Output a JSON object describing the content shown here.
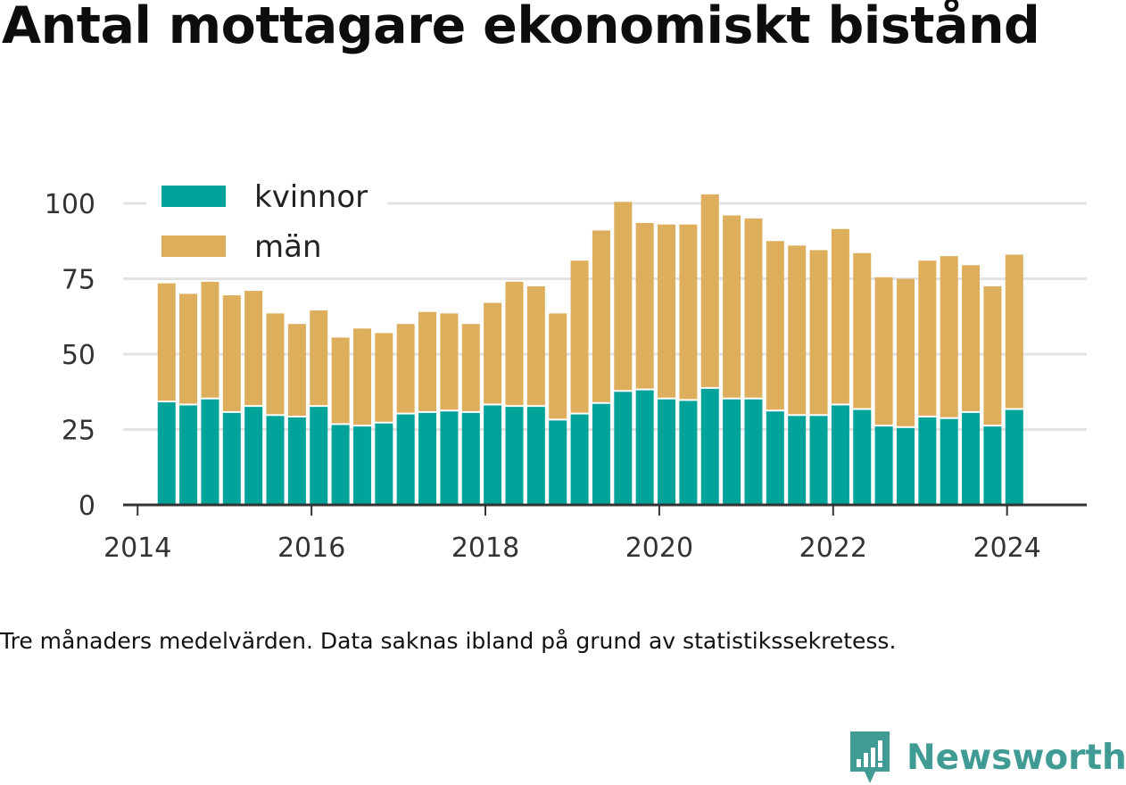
{
  "title": "Antal mottagare ekonomiskt bistånd",
  "note": "Tre månaders medelvärden. Data saknas ibland på grund av statistikssekretess.",
  "brand": {
    "name": "Newsworthy",
    "logo_icon": "newsworthy-bar-chart-logo-icon"
  },
  "colors": {
    "kvinnor": "#00a39a",
    "man": "#ddae5b",
    "grid": "#e3e3e3",
    "axis": "#333333",
    "brand": "#3f9b93"
  },
  "chart_data": {
    "type": "bar",
    "stacked": true,
    "title": "Antal mottagare ekonomiskt bistånd",
    "xlabel": "",
    "ylabel": "",
    "ylim": [
      0,
      100
    ],
    "y_ticks": [
      0,
      25,
      50,
      75,
      100
    ],
    "x_ticks": [
      "2014",
      "2016",
      "2018",
      "2020",
      "2022",
      "2024"
    ],
    "x_range": [
      "2013-11",
      "2024-12"
    ],
    "grid": true,
    "legend": {
      "position": "top-left",
      "entries": [
        "kvinnor",
        "män"
      ]
    },
    "x": [
      "2014-05",
      "2014-08",
      "2014-11",
      "2015-02",
      "2015-05",
      "2015-08",
      "2015-11",
      "2016-02",
      "2016-05",
      "2016-08",
      "2016-11",
      "2017-02",
      "2017-05",
      "2017-08",
      "2017-11",
      "2018-02",
      "2018-05",
      "2018-08",
      "2018-11",
      "2019-02",
      "2019-05",
      "2019-08",
      "2019-11",
      "2020-02",
      "2020-05",
      "2020-08",
      "2020-11",
      "2021-02",
      "2021-05",
      "2021-08",
      "2021-11",
      "2022-02",
      "2022-05",
      "2022-08",
      "2022-11",
      "2023-02",
      "2023-05",
      "2023-08",
      "2023-11",
      "2024-02"
    ],
    "series": [
      {
        "name": "kvinnor",
        "values": [
          34,
          33,
          35,
          30.5,
          32.5,
          29.5,
          29,
          32.5,
          26.5,
          26,
          27,
          30,
          30.5,
          31,
          30.5,
          33,
          32.5,
          32.5,
          28,
          30,
          33.5,
          37.5,
          38,
          35,
          34.5,
          38.5,
          35,
          35,
          31,
          29.5,
          29.5,
          33,
          31.5,
          26,
          25.5,
          29,
          28.5,
          30.5,
          26,
          31.5
        ]
      },
      {
        "name": "män",
        "values": [
          39.5,
          37,
          39,
          39,
          38.5,
          34,
          31,
          32,
          29,
          32.5,
          30,
          30,
          33.5,
          32.5,
          29.5,
          34,
          41.5,
          40,
          35.5,
          51,
          57.5,
          63,
          55.5,
          58,
          58.5,
          64.5,
          61,
          60,
          56.5,
          56.5,
          55,
          58.5,
          52,
          49.5,
          49.5,
          52,
          54,
          49,
          46.5,
          51.5
        ]
      }
    ]
  }
}
